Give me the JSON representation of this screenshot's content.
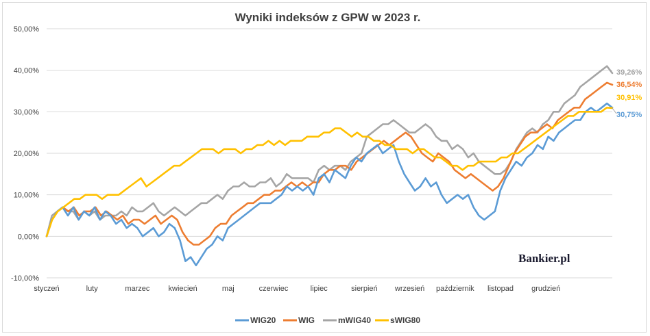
{
  "chart_data": {
    "type": "line",
    "title": "Wyniki indeksów z GPW w 2023 r.",
    "ylim": [
      -10,
      50
    ],
    "y_ticks": [
      "-10,00%",
      "0,00%",
      "10,00%",
      "20,00%",
      "30,00%",
      "40,00%",
      "50,00%"
    ],
    "y_tick_values": [
      -10,
      0,
      10,
      20,
      30,
      40,
      50
    ],
    "x_ticks": [
      "styczeń",
      "luty",
      "marzec",
      "kwiecień",
      "maj",
      "czerwiec",
      "lipiec",
      "sierpień",
      "wrzesień",
      "październik",
      "listopad",
      "grudzień"
    ],
    "grid": "horizontal",
    "legend_position": "bottom",
    "series": [
      {
        "name": "WIG20",
        "color": "#5b9bd5",
        "end_label": "30,75%",
        "values": [
          0,
          4,
          6,
          7,
          5,
          7,
          4,
          6,
          5,
          7,
          4,
          6,
          5,
          3,
          4,
          2,
          3,
          2,
          0,
          1,
          2,
          0,
          1,
          3,
          2,
          -1,
          -6,
          -5,
          -7,
          -5,
          -3,
          -2,
          0,
          -1,
          2,
          3,
          4,
          5,
          6,
          7,
          8,
          8,
          8,
          9,
          10,
          12,
          11,
          12,
          11,
          12,
          10,
          14,
          15,
          13,
          16,
          15,
          14,
          17,
          19,
          18,
          20,
          21,
          22,
          20,
          21,
          22,
          18,
          15,
          13,
          11,
          12,
          14,
          12,
          13,
          10,
          8,
          9,
          10,
          9,
          10,
          7,
          5,
          4,
          5,
          6,
          11,
          14,
          16,
          18,
          17,
          19,
          20,
          22,
          21,
          24,
          23,
          25,
          26,
          27,
          28,
          28,
          30,
          31,
          30,
          31,
          32,
          31
        ]
      },
      {
        "name": "WIG",
        "color": "#ed7d31",
        "end_label": "36,54%",
        "values": [
          0,
          4,
          6,
          7,
          6,
          7,
          5,
          6,
          6,
          7,
          5,
          6,
          5,
          4,
          5,
          3,
          4,
          4,
          3,
          4,
          5,
          3,
          4,
          5,
          4,
          1,
          -1,
          -2,
          -2,
          -1,
          0,
          2,
          3,
          3,
          5,
          6,
          7,
          8,
          8,
          9,
          10,
          10,
          11,
          11,
          12,
          13,
          12,
          13,
          12,
          13,
          13,
          15,
          16,
          16,
          17,
          17,
          16,
          18,
          19,
          20,
          21,
          22,
          23,
          22,
          23,
          24,
          25,
          24,
          22,
          20,
          19,
          18,
          20,
          19,
          18,
          16,
          15,
          14,
          15,
          14,
          13,
          12,
          11,
          12,
          14,
          17,
          20,
          22,
          24,
          25,
          25,
          26,
          27,
          26,
          28,
          29,
          30,
          31,
          31,
          33,
          34,
          35,
          36,
          37,
          36.5
        ]
      },
      {
        "name": "mWIG40",
        "color": "#a5a5a5",
        "end_label": "39,26%",
        "values": [
          0,
          5,
          6,
          7,
          6,
          6,
          4,
          6,
          5,
          6,
          4,
          5,
          5,
          5,
          6,
          5,
          7,
          6,
          6,
          7,
          8,
          6,
          5,
          6,
          7,
          6,
          5,
          6,
          7,
          8,
          8,
          9,
          10,
          9,
          11,
          12,
          12,
          13,
          12,
          12,
          13,
          13,
          14,
          12,
          13,
          15,
          14,
          14,
          14,
          14,
          13,
          16,
          17,
          16,
          17,
          17,
          16,
          18,
          19,
          20,
          24,
          25,
          26,
          27,
          27,
          28,
          27,
          26,
          25,
          25,
          26,
          27,
          26,
          24,
          23,
          23,
          21,
          22,
          21,
          19,
          20,
          18,
          17,
          16,
          15,
          15,
          16,
          18,
          21,
          23,
          25,
          26,
          25,
          27,
          28,
          30,
          30,
          32,
          33,
          34,
          36,
          37,
          38,
          39,
          40,
          41,
          39.3
        ]
      },
      {
        "name": "sWIG80",
        "color": "#ffc000",
        "end_label": "30,91%",
        "values": [
          0,
          4,
          6,
          7,
          8,
          9,
          9,
          10,
          10,
          10,
          9,
          10,
          10,
          10,
          11,
          12,
          13,
          14,
          12,
          13,
          14,
          15,
          16,
          17,
          17,
          18,
          19,
          20,
          21,
          21,
          21,
          20,
          21,
          21,
          21,
          20,
          21,
          21,
          22,
          22,
          23,
          22,
          23,
          22,
          23,
          23,
          23,
          24,
          24,
          24,
          25,
          25,
          26,
          26,
          25,
          24,
          25,
          24,
          24,
          23,
          23,
          22,
          22,
          21,
          21,
          21,
          20,
          21,
          21,
          20,
          19,
          19,
          18,
          17,
          17,
          16,
          17,
          17,
          18,
          18,
          18,
          18,
          19,
          19,
          20,
          20,
          21,
          22,
          23,
          24,
          25,
          26,
          27,
          28,
          29,
          29,
          30,
          30,
          30,
          30,
          30,
          31,
          30.9
        ]
      }
    ]
  },
  "legend": [
    "WIG20",
    "WIG",
    "mWIG40",
    "sWIG80"
  ],
  "logo_text": "Bankier.pl"
}
